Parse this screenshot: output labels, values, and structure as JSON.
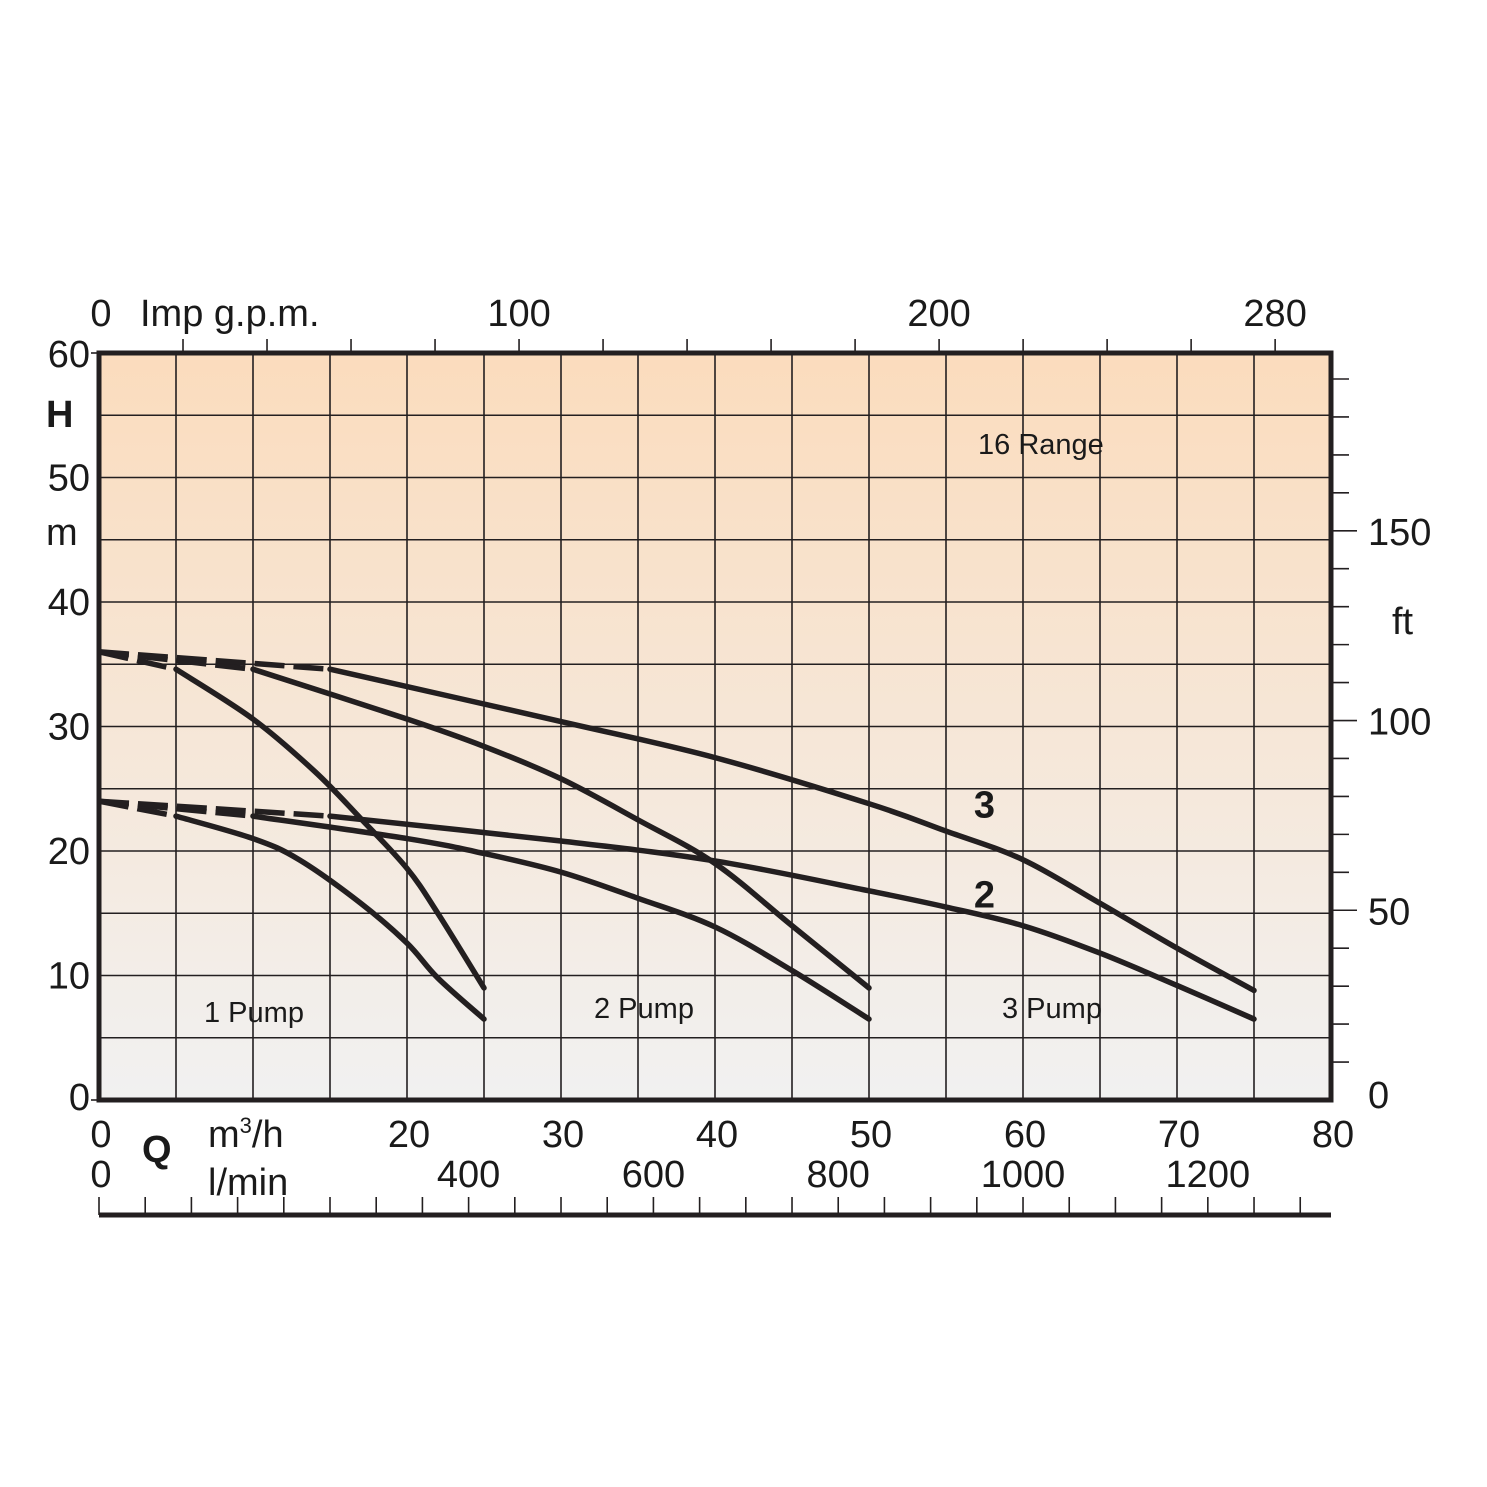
{
  "chart_data": {
    "type": "line",
    "title": "",
    "annotations": {
      "range": "16 Range",
      "pump1": "1 Pump",
      "pump2": "2 Pump",
      "pump3": "3 Pump"
    },
    "axes": {
      "bottom": {
        "label_symbol": "Q",
        "unit_main": "m",
        "unit_sup": "3",
        "unit_rest": "/h",
        "range": [
          0,
          80
        ],
        "tick_labels": [
          0,
          20,
          30,
          40,
          50,
          60,
          70,
          80
        ],
        "grid_step": 5
      },
      "bottom2": {
        "unit": "l/min",
        "range": [
          0,
          1333.3
        ],
        "tick_labels": [
          0,
          400,
          600,
          800,
          1000,
          1200
        ],
        "minor_step": 50
      },
      "top": {
        "unit": "Imp g.p.m.",
        "range": [
          0,
          293.3
        ],
        "tick_labels": [
          0,
          100,
          200,
          280
        ],
        "minor_step": 20
      },
      "left": {
        "label_symbol": "H",
        "unit": "m",
        "range": [
          0,
          60
        ],
        "tick_labels": [
          0,
          10,
          20,
          30,
          40,
          50,
          60
        ],
        "grid_step": 5
      },
      "right": {
        "unit": "ft",
        "range": [
          0,
          196.85
        ],
        "tick_labels": [
          0,
          50,
          100,
          150
        ],
        "minor_step": 10
      }
    },
    "grid": true,
    "series": [
      {
        "curve": "2",
        "pumps": 1,
        "dashed": [
          [
            0,
            24
          ],
          [
            5,
            22.8
          ]
        ],
        "solid": [
          [
            5,
            22.8
          ],
          [
            10,
            21
          ],
          [
            13,
            19.3
          ],
          [
            17,
            15.8
          ],
          [
            20,
            12.6
          ],
          [
            22,
            9.8
          ],
          [
            25,
            6.5
          ]
        ]
      },
      {
        "curve": "3",
        "pumps": 1,
        "dashed": [
          [
            0,
            36
          ],
          [
            5,
            34.6
          ]
        ],
        "solid": [
          [
            5,
            34.6
          ],
          [
            10,
            30.6
          ],
          [
            14,
            26.4
          ],
          [
            17,
            22.6
          ],
          [
            20,
            18.6
          ],
          [
            22,
            15
          ],
          [
            25,
            9
          ]
        ]
      },
      {
        "curve": "2",
        "pumps": 2,
        "dashed": [
          [
            0,
            24
          ],
          [
            10,
            22.8
          ]
        ],
        "solid": [
          [
            10,
            22.8
          ],
          [
            20,
            21
          ],
          [
            25,
            19.8
          ],
          [
            30,
            18.3
          ],
          [
            35,
            16.2
          ],
          [
            40,
            13.9
          ],
          [
            45,
            10.4
          ],
          [
            50,
            6.5
          ]
        ]
      },
      {
        "curve": "3",
        "pumps": 2,
        "dashed": [
          [
            0,
            36
          ],
          [
            10,
            34.6
          ]
        ],
        "solid": [
          [
            10,
            34.6
          ],
          [
            20,
            30.6
          ],
          [
            25,
            28.4
          ],
          [
            30,
            25.8
          ],
          [
            35,
            22.5
          ],
          [
            40,
            19
          ],
          [
            45,
            14
          ],
          [
            50,
            9
          ]
        ]
      },
      {
        "curve": "2",
        "pumps": 3,
        "dashed": [
          [
            0,
            24
          ],
          [
            15,
            22.8
          ]
        ],
        "solid": [
          [
            15,
            22.8
          ],
          [
            30,
            20.8
          ],
          [
            40,
            19.2
          ],
          [
            50,
            16.8
          ],
          [
            55,
            15.5
          ],
          [
            60,
            14
          ],
          [
            65,
            11.8
          ],
          [
            70,
            9.2
          ],
          [
            75,
            6.5
          ]
        ]
      },
      {
        "curve": "3",
        "pumps": 3,
        "dashed": [
          [
            0,
            36
          ],
          [
            15,
            34.6
          ]
        ],
        "solid": [
          [
            15,
            34.6
          ],
          [
            30,
            30.4
          ],
          [
            40,
            27.5
          ],
          [
            50,
            23.8
          ],
          [
            55,
            21.6
          ],
          [
            60,
            19.3
          ],
          [
            65,
            15.8
          ],
          [
            70,
            12.2
          ],
          [
            75,
            8.8
          ]
        ]
      }
    ],
    "curve_labels": [
      {
        "text": "3",
        "x": 57.5,
        "y": 23.8
      },
      {
        "text": "2",
        "x": 57.5,
        "y": 16.6
      }
    ],
    "colors": {
      "background_top": "#fbdcbd",
      "background_bottom": "#f1f1f1",
      "line": "#231f20"
    }
  }
}
